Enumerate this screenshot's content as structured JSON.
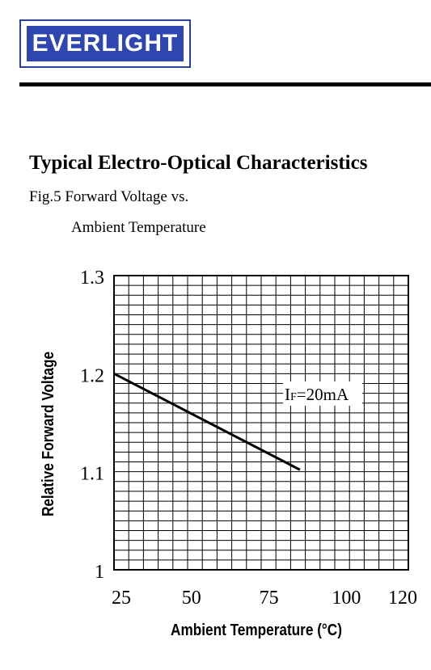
{
  "logo": {
    "text": "EVERLIGHT"
  },
  "section_title": "Typical Electro-Optical Characteristics",
  "figure": {
    "caption_line1": "Fig.5 Forward Voltage vs.",
    "caption_line2": "Ambient Temperature"
  },
  "colors": {
    "brand_blue": "#2e46b0",
    "grid": "#000000",
    "line": "#000000"
  },
  "chart_data": {
    "type": "line",
    "title": "",
    "xlabel": "Ambient Temperature (°C)",
    "ylabel": "Relative Forward Voltage",
    "x_ticks": [
      "25",
      "50",
      "75",
      "100",
      "120"
    ],
    "y_ticks": [
      "1",
      "1.1",
      "1.2",
      "1.3"
    ],
    "xlim": [
      25,
      120
    ],
    "ylim": [
      1.0,
      1.3
    ],
    "grid": true,
    "annotation": {
      "main": "I",
      "sub": "F",
      "rest": "=20mA"
    },
    "series": [
      {
        "x": [
          25,
          85
        ],
        "y": [
          1.2,
          1.102
        ]
      }
    ]
  }
}
